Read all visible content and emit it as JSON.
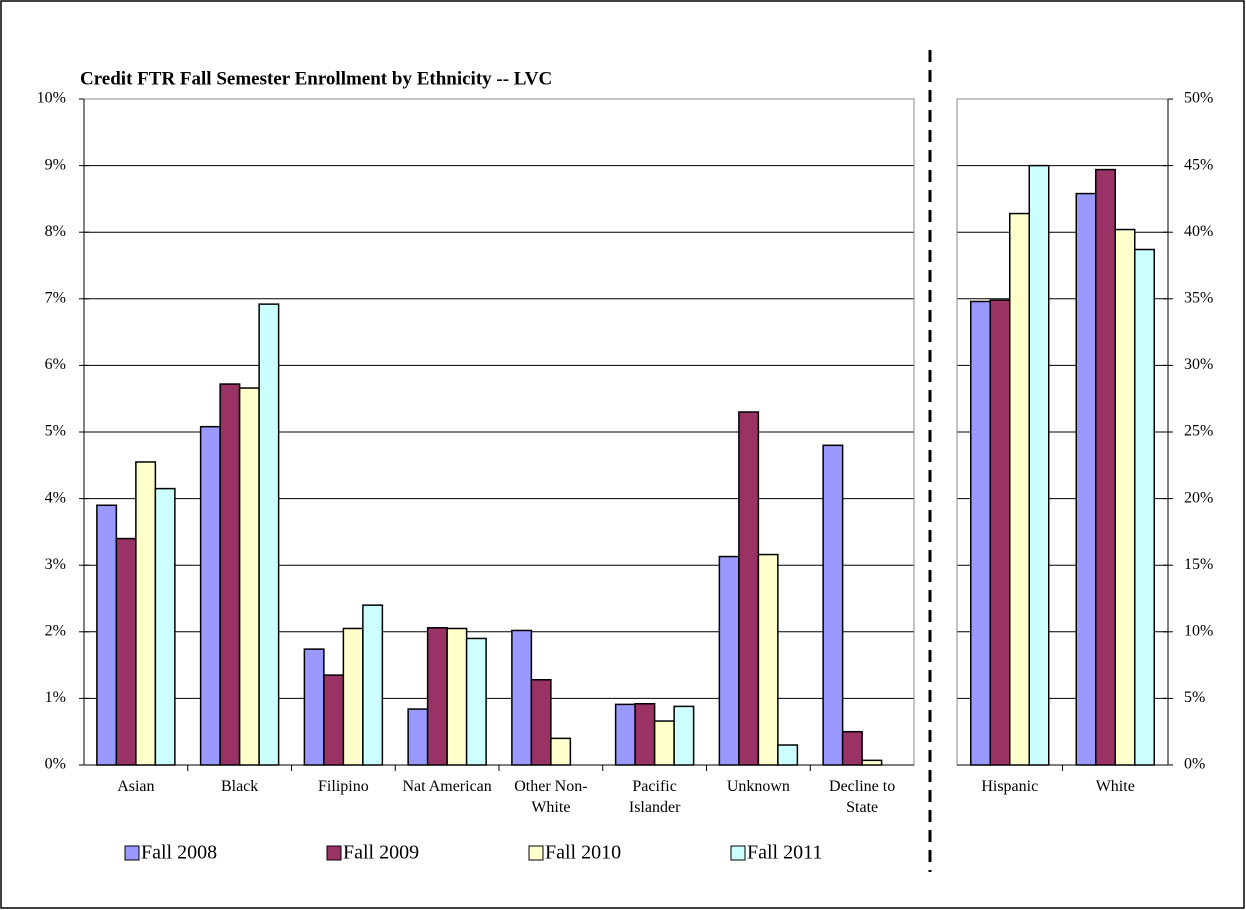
{
  "chart_data": [
    {
      "type": "bar",
      "title": "Credit FTR Fall Semester Enrollment by Ethnicity -- LVC",
      "categories": [
        "Asian",
        "Black",
        "Filipino",
        "Nat American",
        "Other Non-White",
        "Pacific Islander",
        "Unknown",
        "Decline to State"
      ],
      "series": [
        {
          "name": "Fall 2008",
          "color": "#9999ff",
          "values": [
            3.9,
            5.08,
            1.74,
            0.84,
            2.02,
            0.91,
            3.13,
            4.8
          ]
        },
        {
          "name": "Fall 2009",
          "color": "#993366",
          "values": [
            3.4,
            5.72,
            1.35,
            2.06,
            1.28,
            0.92,
            5.3,
            0.5
          ]
        },
        {
          "name": "Fall 2010",
          "color": "#ffffcc",
          "values": [
            4.55,
            5.66,
            2.05,
            2.05,
            0.4,
            0.66,
            3.16,
            0.07
          ]
        },
        {
          "name": "Fall 2011",
          "color": "#ccffff",
          "values": [
            4.15,
            6.92,
            2.4,
            1.9,
            0,
            0.88,
            0.3,
            0
          ]
        }
      ],
      "ylim": [
        0,
        10
      ],
      "yticks": [
        {
          "value": 0,
          "label": "0%"
        },
        {
          "value": 1,
          "label": "1%"
        },
        {
          "value": 2,
          "label": "2%"
        },
        {
          "value": 3,
          "label": "3%"
        },
        {
          "value": 4,
          "label": "4%"
        },
        {
          "value": 5,
          "label": "5%"
        },
        {
          "value": 6,
          "label": "6%"
        },
        {
          "value": 7,
          "label": "7%"
        },
        {
          "value": 8,
          "label": "8%"
        },
        {
          "value": 9,
          "label": "9%"
        },
        {
          "value": 10,
          "label": "10%"
        }
      ],
      "grid": true,
      "legend": "bottom"
    },
    {
      "type": "bar",
      "categories": [
        "Hispanic",
        "White"
      ],
      "series": [
        {
          "color": "#9999ff",
          "values": [
            34.8,
            42.9
          ]
        },
        {
          "color": "#993366",
          "values": [
            34.9,
            44.7
          ]
        },
        {
          "color": "#ffffcc",
          "values": [
            41.4,
            40.2
          ]
        },
        {
          "color": "#ccffff",
          "values": [
            45.0,
            38.7
          ]
        }
      ],
      "ylim": [
        0,
        50
      ],
      "yticks": [
        {
          "value": 0,
          "label": "0%"
        },
        {
          "value": 5,
          "label": "5%"
        },
        {
          "value": 10,
          "label": "10%"
        },
        {
          "value": 15,
          "label": "15%"
        },
        {
          "value": 20,
          "label": "20%"
        },
        {
          "value": 25,
          "label": "25%"
        },
        {
          "value": 30,
          "label": "30%"
        },
        {
          "value": 35,
          "label": "35%"
        },
        {
          "value": 40,
          "label": "40%"
        },
        {
          "value": 45,
          "label": "45%"
        },
        {
          "value": 50,
          "label": "50%"
        }
      ],
      "grid": true
    }
  ]
}
